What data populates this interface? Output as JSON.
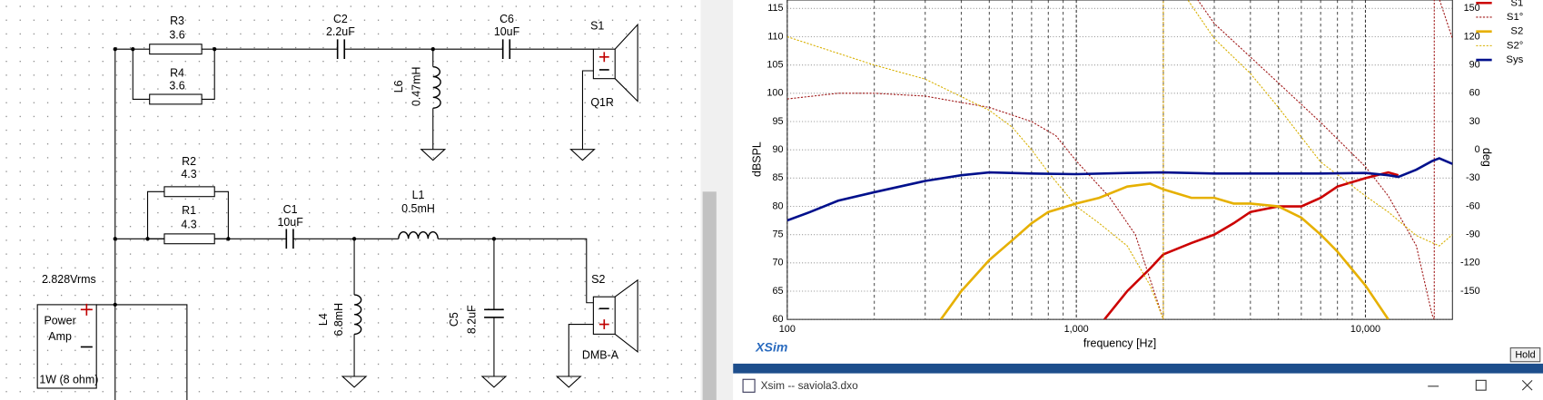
{
  "schematic": {
    "components": [
      {
        "ref": "R3",
        "value": "3.6"
      },
      {
        "ref": "R4",
        "value": "3.6"
      },
      {
        "ref": "C2",
        "value": "2.2uF"
      },
      {
        "ref": "C6",
        "value": "10uF"
      },
      {
        "ref": "L6",
        "value": "0.47mH"
      },
      {
        "ref": "S1",
        "value": "Q1R"
      },
      {
        "ref": "R2",
        "value": "4.3"
      },
      {
        "ref": "R1",
        "value": "4.3"
      },
      {
        "ref": "C1",
        "value": "10uF"
      },
      {
        "ref": "L1",
        "value": "0.5mH"
      },
      {
        "ref": "L4",
        "value": "6.8mH"
      },
      {
        "ref": "C5",
        "value": "8.2uF"
      },
      {
        "ref": "S2",
        "value": "DMB-A"
      }
    ],
    "source": {
      "voltage": "2.828Vrms",
      "name_line1": "Power",
      "name_line2": "Amp",
      "load": "1W (8 ohm)"
    }
  },
  "chart_data": {
    "type": "line",
    "watermark": "XSim",
    "x_label": "frequency [Hz]",
    "y_label": "dBSPL",
    "y2_label": "deg",
    "xscale": "log",
    "xlim": [
      100,
      20000
    ],
    "xticks": [
      100,
      {
        "value": 1000,
        "label": "1,000"
      },
      {
        "value": 10000,
        "label": "10,000"
      }
    ],
    "xminor": [
      200,
      300,
      400,
      500,
      600,
      700,
      800,
      900,
      2000,
      3000,
      4000,
      5000,
      6000,
      7000,
      8000,
      9000
    ],
    "ylim": [
      60,
      116.5
    ],
    "yticks": [
      60,
      65,
      70,
      75,
      80,
      85,
      90,
      95,
      100,
      105,
      110,
      115
    ],
    "y2lim": [
      -180,
      159
    ],
    "y2ticks": [
      -150,
      -120,
      -90,
      -60,
      -30,
      0,
      30,
      60,
      90,
      120,
      150
    ],
    "grid": true,
    "legend": "upper right",
    "series": [
      {
        "name": "S1",
        "color": "#cc0000",
        "style": "solid",
        "x": [
          1250,
          1500,
          1800,
          2000,
          2500,
          3000,
          3500,
          4000,
          5000,
          6000,
          7000,
          8000,
          10000,
          12000,
          13000
        ],
        "values": [
          60,
          65,
          69,
          71.5,
          73.5,
          75,
          77,
          79,
          80,
          80,
          81.5,
          83.5,
          85,
          86,
          85.5
        ]
      },
      {
        "name": "S1°",
        "color": "#a01818",
        "style": "dashed",
        "axis": "y2",
        "x": [
          100,
          150,
          200,
          300,
          500,
          700,
          850,
          1000,
          1300,
          1600,
          2000,
          2000,
          2630,
          3000,
          5000,
          7000,
          10000,
          12000,
          15000,
          17000,
          17300,
          17300,
          18000,
          20000
        ],
        "values": [
          54,
          60,
          60,
          57,
          45,
          30,
          15,
          -12,
          -50,
          -90,
          -180,
          180,
          159,
          134,
          71,
          29,
          -18,
          -49,
          -102,
          -175,
          -180,
          180,
          160,
          118
        ]
      },
      {
        "name": "S2",
        "color": "#e6b000",
        "style": "solid",
        "x": [
          340,
          400,
          500,
          600,
          700,
          800,
          1000,
          1200,
          1500,
          1800,
          2000,
          2500,
          3000,
          3500,
          4000,
          5000,
          6000,
          7000,
          8000,
          10000,
          12000
        ],
        "values": [
          60,
          65,
          70.5,
          74,
          77,
          79,
          80.5,
          81.5,
          83.5,
          84,
          83,
          81.5,
          81.5,
          80.5,
          80.5,
          80,
          78,
          75,
          72,
          66,
          60
        ]
      },
      {
        "name": "S2°",
        "color": "#d8b000",
        "style": "dashed",
        "axis": "y2",
        "x": [
          100,
          200,
          300,
          500,
          600,
          700,
          800,
          1000,
          1200,
          1500,
          1800,
          2000,
          2000,
          2430,
          3000,
          4000,
          5000,
          7000,
          10000,
          12000,
          15000,
          18000,
          20000
        ],
        "values": [
          120,
          90,
          75,
          42,
          24,
          0,
          -24,
          -60,
          -78,
          -102,
          -144,
          -180,
          180,
          159,
          118,
          81,
          45,
          -13,
          -49,
          -66,
          -91,
          -102,
          -90
        ]
      },
      {
        "name": "Sys",
        "color": "#00108c",
        "style": "solid",
        "x": [
          100,
          120,
          150,
          200,
          300,
          400,
          500,
          700,
          1000,
          1500,
          2000,
          3000,
          5000,
          7000,
          10000,
          12000,
          13000,
          15000,
          17000,
          18000,
          20000
        ],
        "values": [
          77.5,
          79,
          81,
          82.5,
          84.5,
          85.5,
          86,
          85.8,
          85.7,
          85.9,
          86,
          85.8,
          85.8,
          85.8,
          85.9,
          85.5,
          85.2,
          86.5,
          88,
          88.5,
          87.5
        ]
      }
    ]
  },
  "hold_button": "Hold",
  "window": {
    "title": "Xsim -- saviola3.dxo"
  }
}
